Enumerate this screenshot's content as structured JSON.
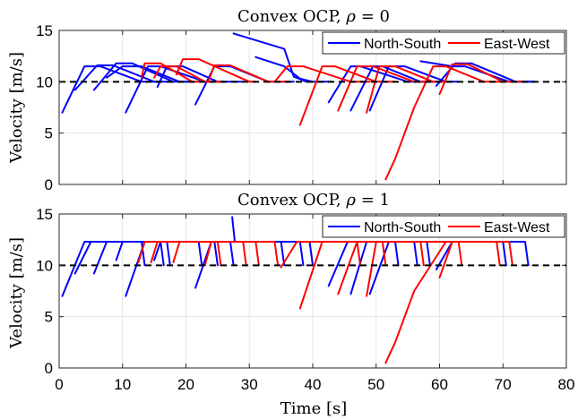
{
  "figure": {
    "xlabel": "Time [s]",
    "ylabel": "Velocity [m/s]"
  },
  "colors": {
    "north_south": "#0000ff",
    "east_west": "#ff0000",
    "reference": "#000000",
    "axis": "#262626",
    "grid": "#e6e6e6"
  },
  "chart_data": [
    {
      "type": "line",
      "title": "Convex OCP, ρ = 0",
      "title_text": "Convex OCP, ",
      "title_symbol": "ρ",
      "title_value": " = 0",
      "xlim": [
        0,
        80
      ],
      "ylim": [
        0,
        15
      ],
      "xticks": [
        0,
        10,
        20,
        30,
        40,
        50,
        60,
        70,
        80
      ],
      "yticks": [
        0,
        5,
        10,
        15
      ],
      "grid": "on",
      "legend": {
        "placement": "top-right",
        "entries": [
          "North-South",
          "East-West"
        ]
      },
      "reference_line": {
        "y": 10,
        "style": "dashed"
      },
      "series": [
        {
          "name": "North-South",
          "color": "#0000ff",
          "segments": [
            [
              [
                0.5,
                7.0
              ],
              [
                4,
                11.5
              ],
              [
                6.5,
                11.5
              ],
              [
                13,
                10
              ],
              [
                16,
                10
              ]
            ],
            [
              [
                2.5,
                9.2
              ],
              [
                6,
                11.6
              ],
              [
                8.5,
                11.6
              ],
              [
                15,
                10
              ],
              [
                18,
                10
              ]
            ],
            [
              [
                5.5,
                9.2
              ],
              [
                9,
                11.8
              ],
              [
                11.5,
                11.8
              ],
              [
                18,
                10
              ],
              [
                21,
                10
              ]
            ],
            [
              [
                7.5,
                10.4
              ],
              [
                10,
                11.5
              ],
              [
                13,
                11.5
              ],
              [
                19,
                10
              ],
              [
                22,
                10
              ]
            ],
            [
              [
                10.5,
                7.0
              ],
              [
                14,
                11.5
              ],
              [
                16,
                11.5
              ],
              [
                23,
                10
              ],
              [
                26,
                10
              ]
            ],
            [
              [
                15.5,
                9.5
              ],
              [
                17,
                11.5
              ],
              [
                19.5,
                11.5
              ],
              [
                25,
                10
              ],
              [
                29,
                10
              ]
            ],
            [
              [
                21.5,
                7.8
              ],
              [
                24.5,
                11.5
              ],
              [
                27,
                11.5
              ],
              [
                33,
                10
              ],
              [
                37,
                10
              ]
            ],
            [
              [
                27.5,
                14.7
              ],
              [
                35.5,
                13.2
              ],
              [
                37,
                10.5
              ],
              [
                39,
                10
              ],
              [
                40,
                10
              ]
            ],
            [
              [
                31,
                12.4
              ],
              [
                35.5,
                11.5
              ],
              [
                38,
                10.3
              ],
              [
                40,
                10
              ],
              [
                43,
                10
              ]
            ],
            [
              [
                42.5,
                8.0
              ],
              [
                46,
                11.5
              ],
              [
                47.5,
                11.5
              ],
              [
                55,
                10
              ],
              [
                59,
                10
              ]
            ],
            [
              [
                46,
                7.2
              ],
              [
                49.5,
                11.5
              ],
              [
                51,
                11.5
              ],
              [
                57,
                10
              ],
              [
                60,
                10
              ]
            ],
            [
              [
                49,
                7.2
              ],
              [
                52,
                11.5
              ],
              [
                54.5,
                11.5
              ],
              [
                61,
                10
              ],
              [
                63,
                10
              ]
            ],
            [
              [
                57,
                12.0
              ],
              [
                62,
                11.5
              ],
              [
                64,
                11.5
              ],
              [
                71,
                10
              ],
              [
                75,
                10
              ]
            ],
            [
              [
                59.5,
                9.6
              ],
              [
                62.5,
                11.8
              ],
              [
                65,
                11.8
              ],
              [
                72,
                10
              ],
              [
                75,
                10
              ]
            ]
          ]
        },
        {
          "name": "East-West",
          "color": "#ff0000",
          "segments": [
            [
              [
                13,
                10.4
              ],
              [
                13.5,
                11.8
              ],
              [
                16,
                11.8
              ],
              [
                21,
                10
              ],
              [
                24,
                10
              ]
            ],
            [
              [
                15,
                10.4
              ],
              [
                16,
                11.5
              ],
              [
                18.5,
                11.5
              ],
              [
                23,
                10
              ],
              [
                26,
                10
              ]
            ],
            [
              [
                18.5,
                10.7
              ],
              [
                19.5,
                12.2
              ],
              [
                22,
                12.2
              ],
              [
                30,
                10
              ],
              [
                31,
                10
              ]
            ],
            [
              [
                23.5,
                10.0
              ],
              [
                24.5,
                11.6
              ],
              [
                27,
                11.6
              ],
              [
                33,
                10
              ],
              [
                36,
                10
              ]
            ],
            [
              [
                34,
                10.0
              ],
              [
                36,
                11.5
              ],
              [
                38.5,
                11.5
              ],
              [
                46,
                10
              ],
              [
                49,
                10
              ]
            ],
            [
              [
                38,
                5.8
              ],
              [
                41.5,
                11.5
              ],
              [
                43.5,
                11.5
              ],
              [
                50,
                10
              ],
              [
                53,
                10
              ]
            ],
            [
              [
                44,
                7.2
              ],
              [
                47,
                11.5
              ],
              [
                49.5,
                11.5
              ],
              [
                56,
                10
              ],
              [
                58,
                10
              ]
            ],
            [
              [
                48.5,
                7.0
              ],
              [
                50.5,
                11.5
              ],
              [
                53,
                11.5
              ],
              [
                59,
                10
              ],
              [
                61,
                10
              ]
            ],
            [
              [
                51.5,
                0.5
              ],
              [
                53,
                2.5
              ],
              [
                56,
                7.5
              ],
              [
                59,
                11.5
              ],
              [
                61,
                11.5
              ],
              [
                67,
                10
              ],
              [
                70,
                10
              ]
            ],
            [
              [
                60,
                8.8
              ],
              [
                62,
                11.7
              ],
              [
                64.5,
                11.7
              ],
              [
                70,
                10
              ],
              [
                73,
                10
              ]
            ]
          ]
        }
      ]
    },
    {
      "type": "line",
      "title": "Convex OCP, ρ = 1",
      "title_text": "Convex OCP, ",
      "title_symbol": "ρ",
      "title_value": " = 1",
      "xlim": [
        0,
        80
      ],
      "ylim": [
        0,
        15
      ],
      "xticks": [
        0,
        10,
        20,
        30,
        40,
        50,
        60,
        70,
        80
      ],
      "yticks": [
        0,
        5,
        10,
        15
      ],
      "grid": "on",
      "legend": {
        "placement": "top-right",
        "entries": [
          "North-South",
          "East-West"
        ]
      },
      "reference_line": {
        "y": 10,
        "style": "dashed"
      },
      "series": [
        {
          "name": "North-South",
          "color": "#0000ff",
          "segments": [
            [
              [
                0.5,
                7.0
              ],
              [
                4,
                12.3
              ],
              [
                13,
                12.3
              ],
              [
                13.5,
                10
              ]
            ],
            [
              [
                2.5,
                9.2
              ],
              [
                5,
                12.3
              ],
              [
                16,
                12.3
              ],
              [
                16.5,
                10
              ]
            ],
            [
              [
                5.5,
                9.2
              ],
              [
                7.5,
                12.3
              ],
              [
                17,
                12.3
              ],
              [
                17.5,
                10
              ]
            ],
            [
              [
                9,
                10.5
              ],
              [
                10,
                12.3
              ],
              [
                22,
                12.3
              ],
              [
                22.5,
                10
              ]
            ],
            [
              [
                10.5,
                7.0
              ],
              [
                13.5,
                12.3
              ],
              [
                24.5,
                12.3
              ],
              [
                25,
                10
              ]
            ],
            [
              [
                15,
                10.5
              ],
              [
                16,
                12.3
              ],
              [
                27,
                12.3
              ],
              [
                27.5,
                10
              ]
            ],
            [
              [
                21.5,
                7.8
              ],
              [
                24,
                12.3
              ],
              [
                38,
                12.3
              ],
              [
                38.5,
                10
              ]
            ],
            [
              [
                27.3,
                14.7
              ],
              [
                27.7,
                12.3
              ],
              [
                35,
                12.3
              ],
              [
                35.5,
                10
              ]
            ],
            [
              [
                31,
                12.3
              ],
              [
                39.5,
                12.3
              ],
              [
                40,
                10
              ]
            ],
            [
              [
                42.5,
                8.0
              ],
              [
                45.5,
                12.3
              ],
              [
                53,
                12.3
              ],
              [
                53.5,
                10
              ]
            ],
            [
              [
                46,
                7.2
              ],
              [
                48.5,
                12.3
              ],
              [
                56,
                12.3
              ],
              [
                56.5,
                10
              ]
            ],
            [
              [
                49,
                7.2
              ],
              [
                52,
                12.3
              ],
              [
                58,
                12.3
              ],
              [
                58.5,
                10
              ]
            ],
            [
              [
                57,
                12.3
              ],
              [
                73.5,
                12.3
              ],
              [
                74,
                10
              ]
            ],
            [
              [
                59.5,
                9.6
              ],
              [
                62,
                12.3
              ],
              [
                70,
                12.3
              ],
              [
                70.5,
                10
              ]
            ]
          ]
        },
        {
          "name": "East-West",
          "color": "#ff0000",
          "segments": [
            [
              [
                12.5,
                10.3
              ],
              [
                13.5,
                12.3
              ],
              [
                25,
                12.3
              ],
              [
                25.5,
                10
              ]
            ],
            [
              [
                14.5,
                10.3
              ],
              [
                15.5,
                12.3
              ],
              [
                29,
                12.3
              ],
              [
                29.5,
                10
              ]
            ],
            [
              [
                18,
                10.3
              ],
              [
                19,
                12.3
              ],
              [
                31,
                12.3
              ],
              [
                31.5,
                10
              ]
            ],
            [
              [
                23,
                10.0
              ],
              [
                24,
                12.3
              ],
              [
                34,
                12.3
              ],
              [
                34.5,
                10
              ]
            ],
            [
              [
                35,
                9.8
              ],
              [
                37.5,
                12.3
              ],
              [
                47,
                12.3
              ],
              [
                47.5,
                10
              ]
            ],
            [
              [
                38,
                5.8
              ],
              [
                41.5,
                12.3
              ],
              [
                51,
                12.3
              ],
              [
                51.5,
                10
              ]
            ],
            [
              [
                44,
                7.2
              ],
              [
                47,
                12.3
              ],
              [
                57,
                12.3
              ],
              [
                57.5,
                10
              ]
            ],
            [
              [
                48.5,
                7.0
              ],
              [
                50,
                12.3
              ],
              [
                63,
                12.3
              ],
              [
                63.5,
                10
              ]
            ],
            [
              [
                51.5,
                0.5
              ],
              [
                53,
                2.5
              ],
              [
                56,
                7.5
              ],
              [
                61,
                12.3
              ],
              [
                71,
                12.3
              ],
              [
                71.5,
                10
              ]
            ],
            [
              [
                60,
                8.8
              ],
              [
                62,
                12.3
              ],
              [
                69,
                12.3
              ],
              [
                69.5,
                10
              ]
            ]
          ]
        }
      ]
    }
  ]
}
